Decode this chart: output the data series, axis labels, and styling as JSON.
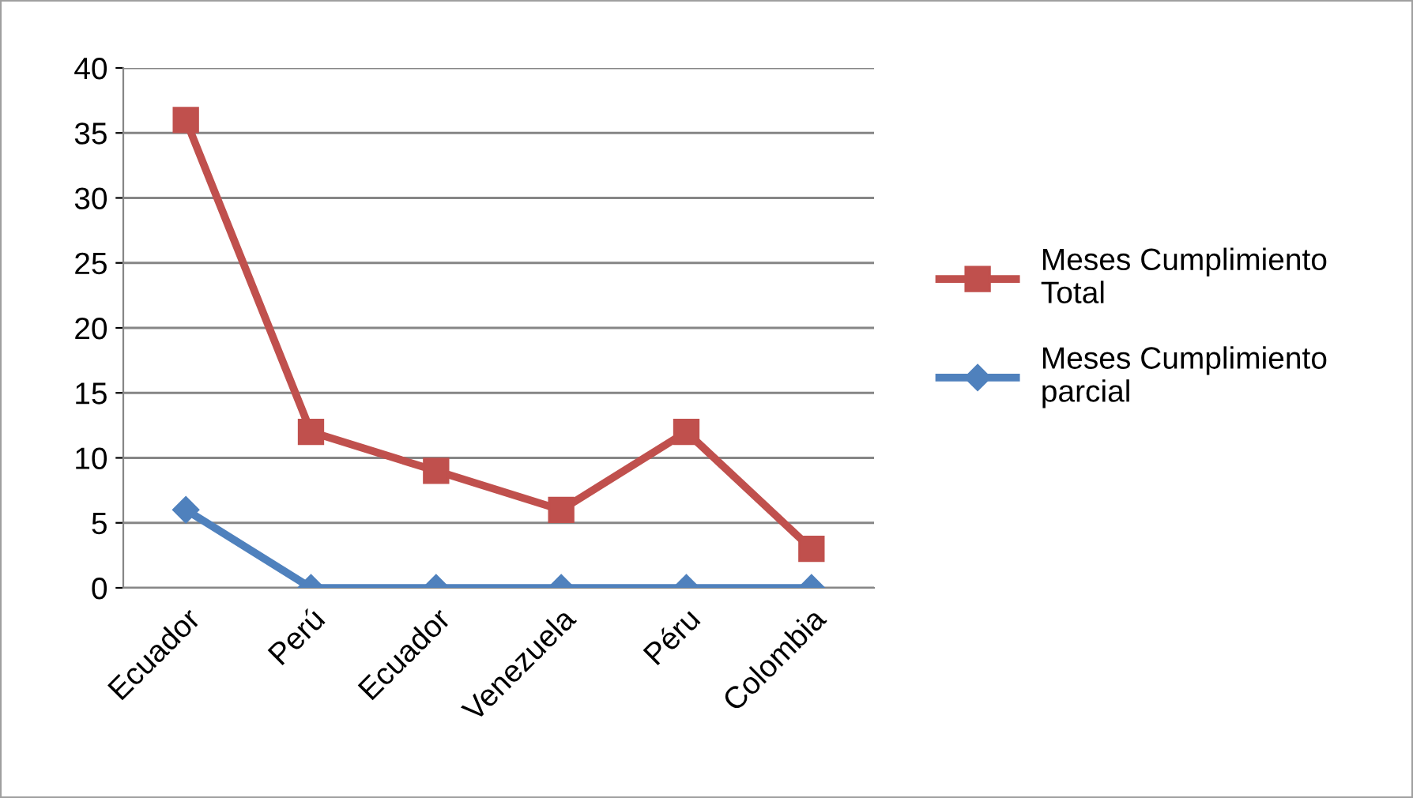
{
  "chart_data": {
    "type": "line",
    "categories": [
      "Ecuador",
      "Perú",
      "Ecuador",
      "Venezuela",
      "Péru",
      "Colombia"
    ],
    "series": [
      {
        "name": "Meses Cumplimiento Total",
        "color": "#c0504d",
        "marker": "square",
        "values": [
          36,
          12,
          9,
          6,
          12,
          3
        ]
      },
      {
        "name": "Meses Cumplimiento parcial",
        "color": "#4f81bd",
        "marker": "diamond",
        "values": [
          6,
          0,
          0,
          0,
          0,
          0
        ]
      }
    ],
    "ylim": [
      0,
      40
    ],
    "yticks": [
      0,
      5,
      10,
      15,
      20,
      25,
      30,
      35,
      40
    ],
    "grid": "y",
    "legend": "right",
    "line_style": "solid"
  }
}
